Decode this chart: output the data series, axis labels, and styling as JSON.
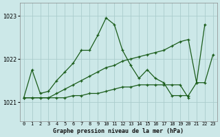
{
  "title": "Graphe pression niveau de la mer (hPa)",
  "bg_color": "#cce8e8",
  "grid_color": "#aacccc",
  "line_color": "#1a5c1a",
  "yticks": [
    1021,
    1022,
    1023
  ],
  "ylim": [
    1020.55,
    1023.3
  ],
  "xlim": [
    -0.5,
    23.5
  ],
  "hours": [
    0,
    1,
    2,
    3,
    4,
    5,
    6,
    7,
    8,
    9,
    10,
    11,
    12,
    13,
    14,
    15,
    16,
    17,
    18,
    19,
    20,
    21,
    22,
    23
  ],
  "curve1_x": [
    0,
    1,
    2,
    3,
    4,
    5,
    6,
    7,
    8,
    9,
    10,
    11,
    12,
    13,
    14,
    15,
    16,
    17,
    18,
    19,
    20,
    21,
    22,
    23
  ],
  "curve1_y": [
    1021.1,
    1021.75,
    1021.2,
    1021.25,
    1021.5,
    1021.7,
    1021.9,
    1022.2,
    1022.2,
    1022.55,
    1022.95,
    1022.8,
    1022.2,
    1021.85,
    1021.55,
    1021.75,
    1021.55,
    1021.45,
    1021.15,
    1021.15,
    1021.15,
    1021.45,
    1021.45,
    1022.1
  ],
  "curve2_x": [
    0,
    1,
    2,
    3,
    4,
    5,
    6,
    7,
    8,
    9,
    10,
    11,
    12,
    13,
    14,
    15,
    16,
    17,
    18,
    19,
    20,
    21,
    22
  ],
  "curve2_y": [
    1021.1,
    1021.1,
    1021.1,
    1021.1,
    1021.2,
    1021.3,
    1021.4,
    1021.5,
    1021.6,
    1021.7,
    1021.8,
    1021.85,
    1021.95,
    1022.0,
    1022.05,
    1022.1,
    1022.15,
    1022.2,
    1022.3,
    1022.4,
    1022.45,
    1021.45,
    1022.8
  ],
  "curve3_x": [
    0,
    1,
    2,
    3,
    4,
    5,
    6,
    7,
    8,
    9,
    10,
    11,
    12,
    13,
    14,
    15,
    16,
    17,
    18,
    19,
    20
  ],
  "curve3_y": [
    1021.1,
    1021.1,
    1021.1,
    1021.1,
    1021.1,
    1021.1,
    1021.15,
    1021.15,
    1021.2,
    1021.2,
    1021.25,
    1021.3,
    1021.35,
    1021.35,
    1021.4,
    1021.4,
    1021.4,
    1021.4,
    1021.4,
    1021.4,
    1021.1
  ]
}
